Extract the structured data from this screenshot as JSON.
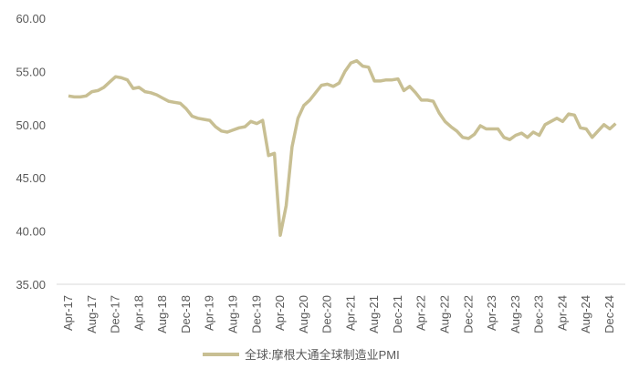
{
  "chart_data": {
    "type": "line",
    "categories": [
      "Apr-17",
      null,
      null,
      null,
      "Aug-17",
      null,
      null,
      null,
      "Dec-17",
      null,
      null,
      null,
      "Apr-18",
      null,
      null,
      null,
      "Aug-18",
      null,
      null,
      null,
      "Dec-18",
      null,
      null,
      null,
      "Apr-19",
      null,
      null,
      null,
      "Aug-19",
      null,
      null,
      null,
      "Dec-19",
      null,
      null,
      null,
      "Apr-20",
      null,
      null,
      null,
      "Aug-20",
      null,
      null,
      null,
      "Dec-20",
      null,
      null,
      null,
      "Apr-21",
      null,
      null,
      null,
      "Aug-21",
      null,
      null,
      null,
      "Dec-21",
      null,
      null,
      null,
      "Apr-22",
      null,
      null,
      null,
      "Aug-22",
      null,
      null,
      null,
      "Dec-22",
      null,
      null,
      null,
      "Apr-23",
      null,
      null,
      null,
      "Aug-23",
      null,
      null,
      null,
      "Dec-23",
      null,
      null,
      null,
      "Apr-24",
      null,
      null,
      null,
      "Aug-24",
      null,
      null,
      null,
      "Dec-24",
      null
    ],
    "series": [
      {
        "name": "全球:摩根大通全球制造业PMI",
        "color": "#c8bf93",
        "values": [
          52.7,
          52.6,
          52.6,
          52.7,
          53.1,
          53.2,
          53.5,
          54.0,
          54.5,
          54.4,
          54.2,
          53.4,
          53.5,
          53.1,
          53.0,
          52.8,
          52.5,
          52.2,
          52.1,
          52.0,
          51.5,
          50.8,
          50.6,
          50.5,
          50.4,
          49.8,
          49.4,
          49.3,
          49.5,
          49.7,
          49.8,
          50.3,
          50.1,
          50.4,
          47.1,
          47.3,
          39.6,
          42.4,
          47.9,
          50.6,
          51.8,
          52.3,
          53.0,
          53.7,
          53.8,
          53.6,
          53.9,
          55.0,
          55.8,
          56.0,
          55.5,
          55.4,
          54.1,
          54.1,
          54.2,
          54.2,
          54.3,
          53.2,
          53.6,
          53.0,
          52.3,
          52.3,
          52.2,
          51.1,
          50.3,
          49.8,
          49.4,
          48.8,
          48.7,
          49.1,
          49.9,
          49.6,
          49.6,
          49.6,
          48.8,
          48.6,
          49.0,
          49.2,
          48.8,
          49.3,
          49.0,
          50.0,
          50.3,
          50.6,
          50.3,
          51.0,
          50.9,
          49.7,
          49.6,
          48.8,
          49.4,
          50.0,
          49.6,
          50.1
        ]
      }
    ],
    "ylim": [
      35,
      60
    ],
    "yticks": [
      {
        "value": 35,
        "label": "35.00"
      },
      {
        "value": 40,
        "label": "40.00"
      },
      {
        "value": 45,
        "label": "45.00"
      },
      {
        "value": 50,
        "label": "50.00"
      },
      {
        "value": 55,
        "label": "55.00"
      },
      {
        "value": 60,
        "label": "60.00"
      }
    ],
    "grid": false
  }
}
